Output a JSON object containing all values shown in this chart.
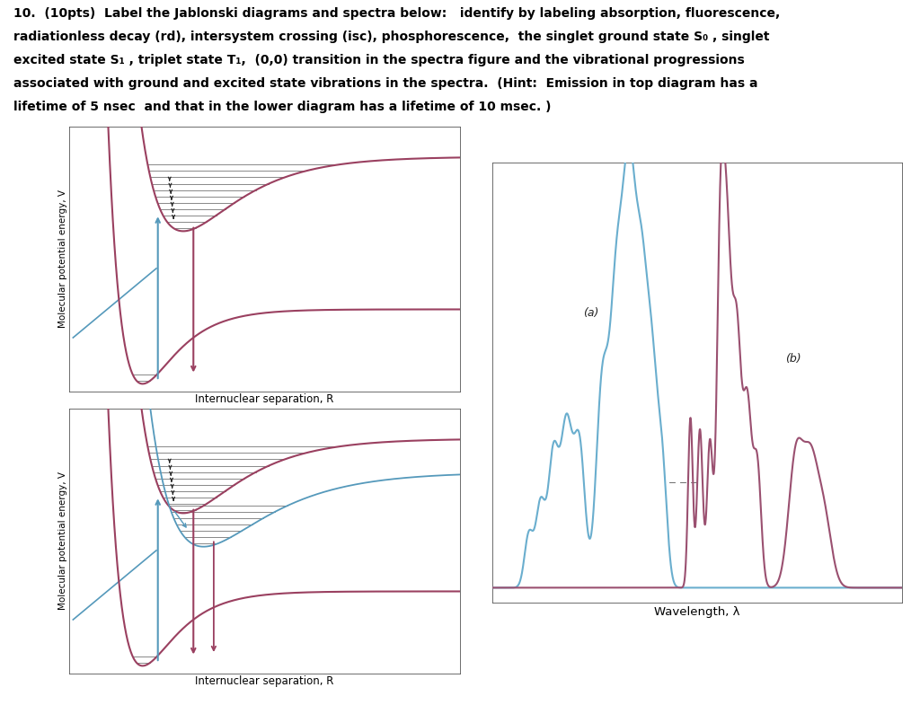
{
  "bg_color": "#ffffff",
  "curve_color_pink": "#9a4060",
  "curve_color_blue": "#5599bb",
  "spec_color_blue": "#6aaece",
  "spec_color_pink": "#9a5070",
  "grid_color": "#bbbbcc",
  "vib_color": "#888888",
  "xlabel_jab": "Internuclear separation, R",
  "ylabel_jab": "Molecular potential energy, V",
  "xlabel_spec": "Wavelength, λ",
  "label_a": "(a)",
  "label_b": "(b)",
  "title_line1_bold": "10.",
  "title_line1_rest": "  (10pts)  Label the Jablonski diagrams and spectra below:   identify by labeling absorption, fluorescence,",
  "title_line2": "radiationless decay (rd), intersystem crossing (isc), phosphorescence,  the singlet ground state S₀ , singlet",
  "title_line3": "excited state S₁ , triplet state T₁,  (0,0) transition in the spectra figure and the vibrational progressions",
  "title_line4": "associated with ground and excited state vibrations in the spectra.  (Hint:  Emission in top diagram has a",
  "title_line5": "lifetime of 5 nsec  and that in the lower diagram has a lifetime of 10 msec. )"
}
